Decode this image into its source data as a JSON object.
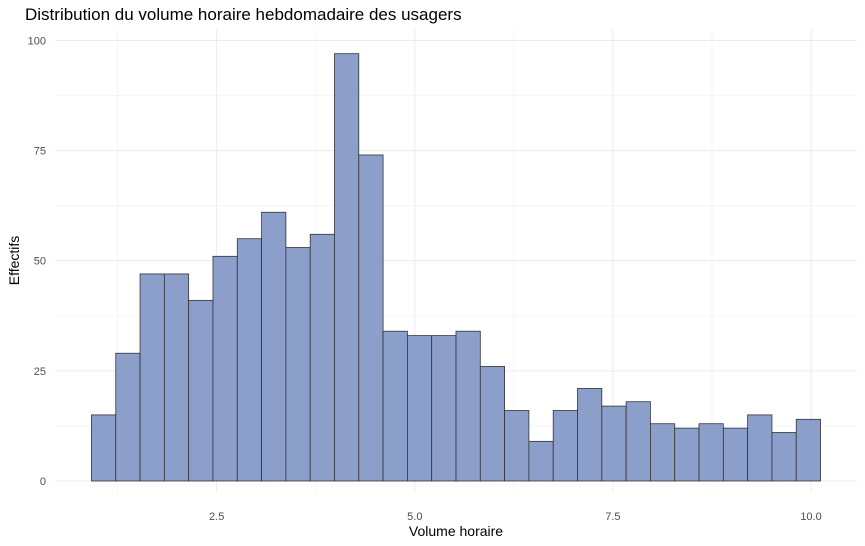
{
  "chart_data": {
    "type": "bar",
    "subtype": "histogram",
    "title": "Distribution du volume horaire hebdomadaire des usagers",
    "xlabel": "Volume horaire",
    "ylabel": "Effectifs",
    "xlim": [
      0.9,
      10.1
    ],
    "ylim": [
      0,
      100
    ],
    "bin_range": [
      0.92,
      10.12
    ],
    "xticks": [
      2.5,
      5.0,
      7.5,
      10.0
    ],
    "xtick_labels": [
      "2.5",
      "5.0",
      "7.5",
      "10.0"
    ],
    "yticks": [
      0,
      25,
      50,
      75,
      100
    ],
    "ytick_labels": [
      "0",
      "25",
      "50",
      "75",
      "100"
    ],
    "values": [
      15,
      29,
      47,
      47,
      41,
      51,
      55,
      61,
      53,
      56,
      97,
      74,
      34,
      33,
      33,
      34,
      26,
      16,
      9,
      16,
      21,
      17,
      18,
      13,
      12,
      13,
      12,
      15,
      11,
      14
    ],
    "bar_color": "#8c9fcb",
    "bar_edge_color": "#333333",
    "grid": true,
    "legend": "none"
  }
}
